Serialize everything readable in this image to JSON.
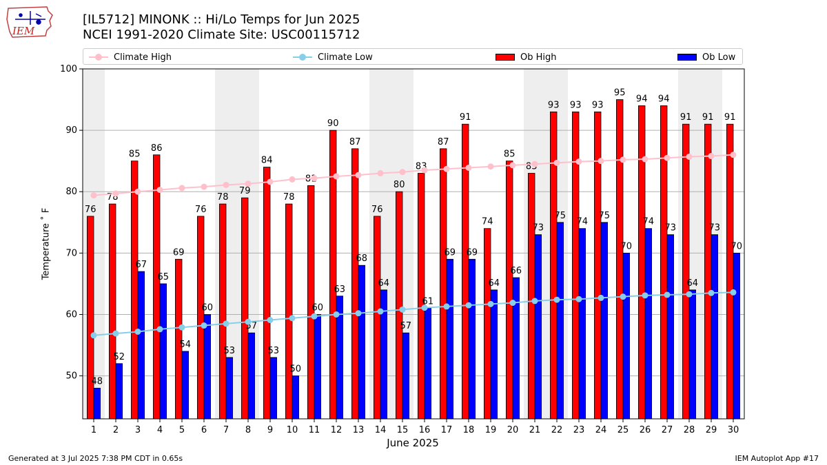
{
  "header": {
    "logo_text": "IEM",
    "title_line1": "[IL5712] MINONK :: Hi/Lo Temps for Jun 2025",
    "title_line2": "NCEI 1991-2020 Climate Site: USC00115712"
  },
  "legend": {
    "placement": "top, above plot",
    "items": [
      {
        "label": "Climate High",
        "kind": "line-marker",
        "color": "#ffc0cb"
      },
      {
        "label": "Climate Low",
        "kind": "line-marker",
        "color": "#87ceeb"
      },
      {
        "label": "Ob High",
        "kind": "bar",
        "color": "#ff0000"
      },
      {
        "label": "Ob Low",
        "kind": "bar",
        "color": "#0000ff"
      }
    ]
  },
  "footer": {
    "left": "Generated at 3 Jul 2025 7:38 PM CDT in 0.65s",
    "right": "IEM Autoplot App #17"
  },
  "chart_data": {
    "type": "bar",
    "xlabel": "June 2025",
    "ylabel": "Temperature ˚ F",
    "ylim": [
      43,
      100
    ],
    "yticks": [
      50,
      60,
      70,
      80,
      90,
      100
    ],
    "grid": "horizontal",
    "weekend_shading_days": [
      1,
      7,
      8,
      14,
      15,
      21,
      22,
      28,
      29
    ],
    "shading_color": "#eeeeee",
    "categories": [
      "1",
      "2",
      "3",
      "4",
      "5",
      "6",
      "7",
      "8",
      "9",
      "10",
      "11",
      "12",
      "13",
      "14",
      "15",
      "16",
      "17",
      "18",
      "19",
      "20",
      "21",
      "22",
      "23",
      "24",
      "25",
      "26",
      "27",
      "28",
      "29",
      "30"
    ],
    "series": [
      {
        "name": "Ob High",
        "type": "bar",
        "color": "#ff0000",
        "values": [
          76,
          78,
          85,
          86,
          69,
          76,
          78,
          79,
          84,
          78,
          81,
          90,
          87,
          76,
          80,
          83,
          87,
          91,
          74,
          85,
          83,
          93,
          93,
          93,
          95,
          94,
          94,
          91,
          91,
          91
        ]
      },
      {
        "name": "Ob Low",
        "type": "bar",
        "color": "#0000ff",
        "values": [
          48,
          52,
          67,
          65,
          54,
          60,
          53,
          57,
          53,
          50,
          60,
          63,
          68,
          64,
          57,
          61,
          69,
          69,
          64,
          66,
          73,
          75,
          74,
          75,
          70,
          74,
          73,
          64,
          73,
          70
        ]
      },
      {
        "name": "Climate High",
        "type": "line",
        "color": "#ffc0cb",
        "values": [
          79.4,
          79.7,
          80.0,
          80.3,
          80.6,
          80.8,
          81.1,
          81.3,
          81.6,
          82.0,
          82.2,
          82.5,
          82.7,
          83.0,
          83.2,
          83.5,
          83.7,
          83.9,
          84.1,
          84.3,
          84.5,
          84.7,
          84.9,
          85.0,
          85.2,
          85.3,
          85.5,
          85.7,
          85.8,
          86.0
        ]
      },
      {
        "name": "Climate Low",
        "type": "line",
        "color": "#87ceeb",
        "values": [
          56.6,
          56.9,
          57.2,
          57.6,
          57.9,
          58.2,
          58.5,
          58.8,
          59.1,
          59.4,
          59.7,
          60.0,
          60.2,
          60.5,
          60.8,
          61.1,
          61.3,
          61.5,
          61.7,
          61.9,
          62.2,
          62.4,
          62.5,
          62.7,
          62.9,
          63.1,
          63.2,
          63.3,
          63.5,
          63.6
        ]
      }
    ]
  }
}
